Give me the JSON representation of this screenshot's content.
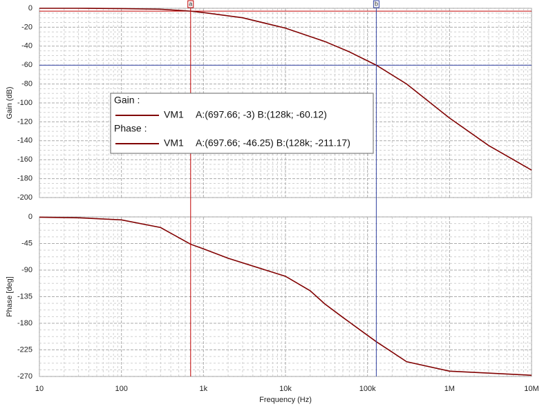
{
  "chart_data": [
    {
      "type": "line",
      "ylabel": "Gain (dB)",
      "xscale": "log",
      "xlim": [
        10,
        10000000
      ],
      "xticks": [
        10,
        100,
        1000,
        10000,
        100000,
        1000000,
        10000000
      ],
      "ylim": [
        -200,
        0
      ],
      "yticks": [
        0,
        -20,
        -40,
        -60,
        -80,
        -100,
        -120,
        -140,
        -160,
        -180,
        -200
      ],
      "grid": true,
      "x": [
        10,
        30,
        100,
        300,
        697.66,
        1000,
        3000,
        10000,
        30000,
        60000,
        128000,
        300000,
        1000000,
        3000000,
        10000000
      ],
      "series": [
        {
          "name": "VM1",
          "color": "#800000",
          "values": [
            0,
            0,
            -0.3,
            -1,
            -3,
            -4.5,
            -10,
            -21,
            -35,
            -46,
            -60.12,
            -80,
            -116,
            -145,
            -171
          ]
        }
      ],
      "legend_title": "Gain :",
      "cursor_readout": "A:(697.66; -3) B:(128k; -60.12)",
      "cursors": [
        {
          "label": "a",
          "x": 697.66,
          "y": -3,
          "color": "#c00000"
        },
        {
          "label": "b",
          "x": 128000,
          "y": -60.12,
          "color": "#3040a0"
        }
      ]
    },
    {
      "type": "line",
      "ylabel": "Phase [deg]",
      "xlabel": "Frequency (Hz)",
      "xscale": "log",
      "xlim": [
        10,
        10000000
      ],
      "xticks": [
        10,
        100,
        {
          "value": 1000,
          "label": "1k"
        },
        {
          "value": 10000,
          "label": "10k"
        },
        {
          "value": 100000,
          "label": "100k"
        },
        {
          "value": 1000000,
          "label": "1M"
        },
        {
          "value": 10000000,
          "label": "10M"
        }
      ],
      "ylim": [
        -270,
        0
      ],
      "yticks": [
        0,
        -45,
        -90,
        -135,
        -180,
        -225,
        -270
      ],
      "grid": true,
      "x": [
        10,
        30,
        100,
        300,
        697.66,
        1000,
        2000,
        10000,
        20000,
        30000,
        50000,
        128000,
        300000,
        1000000,
        10000000
      ],
      "series": [
        {
          "name": "VM1",
          "color": "#800000",
          "values": [
            -0.5,
            -1.5,
            -5,
            -18,
            -46.25,
            -54,
            -70,
            -100.5,
            -125,
            -147,
            -170,
            -211.17,
            -245,
            -261,
            -268
          ]
        }
      ],
      "legend_title": "Phase :",
      "cursor_readout": "A:(697.66; -46.25) B:(128k; -211.17)"
    }
  ]
}
